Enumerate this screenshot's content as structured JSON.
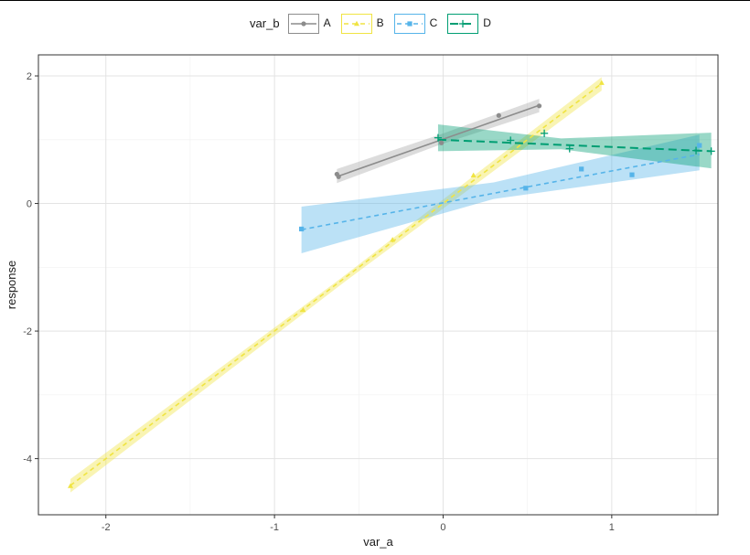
{
  "chart_data": {
    "type": "line",
    "xlabel": "var_a",
    "ylabel": "response",
    "xlim": [
      -2.4,
      1.63
    ],
    "ylim": [
      -4.88,
      2.33
    ],
    "xticks": [
      -2,
      -1,
      0,
      1
    ],
    "yticks": [
      -4,
      -2,
      0,
      2
    ],
    "x_tick_labels": [
      "-2",
      "-1",
      "0",
      "1"
    ],
    "y_tick_labels": [
      "-4",
      "-2",
      "0",
      "2"
    ],
    "grid": true,
    "legend": {
      "title": "var_b",
      "placement": "top",
      "entries": [
        "A",
        "B",
        "C",
        "D"
      ]
    },
    "series": [
      {
        "name": "A",
        "color": "#8c8c8c",
        "linestyle": "solid",
        "marker": "circle",
        "points": [
          [
            -0.63,
            0.46
          ],
          [
            -0.62,
            0.42
          ],
          [
            -0.01,
            0.95
          ],
          [
            0.33,
            1.38
          ],
          [
            0.57,
            1.53
          ]
        ],
        "fit": {
          "x": [
            -0.63,
            0.57
          ],
          "y": [
            0.42,
            1.54
          ]
        },
        "band": {
          "x": [
            -0.63,
            -0.02,
            0.57
          ],
          "upper": [
            0.54,
            1.08,
            1.64
          ],
          "lower": [
            0.32,
            0.92,
            1.43
          ]
        }
      },
      {
        "name": "B",
        "color": "#f0e442",
        "linestyle": "dashed",
        "marker": "triangle",
        "points": [
          [
            -2.21,
            -4.43
          ],
          [
            -0.83,
            -1.67
          ],
          [
            -0.3,
            -0.57
          ],
          [
            0.18,
            0.44
          ],
          [
            0.94,
            1.89
          ]
        ],
        "fit": {
          "x": [
            -2.21,
            0.94
          ],
          "y": [
            -4.42,
            1.88
          ]
        },
        "band": {
          "x": [
            -2.21,
            -0.6,
            0.94
          ],
          "upper": [
            -4.32,
            -1.16,
            1.98
          ],
          "lower": [
            -4.53,
            -1.26,
            1.77
          ]
        }
      },
      {
        "name": "C",
        "color": "#56b4e9",
        "linestyle": "dashed",
        "marker": "square",
        "points": [
          [
            -0.84,
            -0.4
          ],
          [
            0.49,
            0.24
          ],
          [
            0.82,
            0.54
          ],
          [
            1.12,
            0.45
          ],
          [
            1.52,
            0.91
          ]
        ],
        "fit": {
          "x": [
            -0.84,
            1.52
          ],
          "y": [
            -0.41,
            0.77
          ]
        },
        "band": {
          "x": [
            -0.84,
            0.3,
            1.52
          ],
          "upper": [
            -0.05,
            0.33,
            1.08
          ],
          "lower": [
            -0.78,
            0.07,
            0.52
          ]
        }
      },
      {
        "name": "D",
        "color": "#009e73",
        "linestyle": "longdash",
        "marker": "plus",
        "points": [
          [
            -0.03,
            1.03
          ],
          [
            0.4,
            0.99
          ],
          [
            0.6,
            1.1
          ],
          [
            0.75,
            0.86
          ],
          [
            1.5,
            0.83
          ],
          [
            1.59,
            0.82
          ]
        ],
        "fit": {
          "x": [
            -0.03,
            1.59
          ],
          "y": [
            1.0,
            0.82
          ]
        },
        "band": {
          "x": [
            -0.03,
            0.7,
            1.59
          ],
          "upper": [
            1.24,
            1.02,
            1.11
          ],
          "lower": [
            0.82,
            0.85,
            0.55
          ]
        }
      }
    ]
  }
}
